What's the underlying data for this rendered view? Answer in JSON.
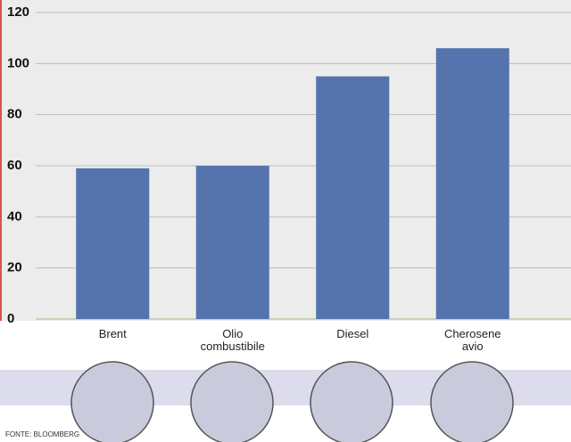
{
  "chart_data": {
    "type": "bar",
    "categories": [
      "Brent",
      "Olio combustibile",
      "Diesel",
      "Cherosene avio"
    ],
    "values": [
      59,
      60,
      95,
      106
    ],
    "color": "#5574ad",
    "ylim": [
      0,
      120
    ],
    "yticks": [
      0,
      20,
      40,
      60,
      80,
      100,
      120
    ],
    "grid": true,
    "source": "FONTE: BLOOMBERG"
  }
}
